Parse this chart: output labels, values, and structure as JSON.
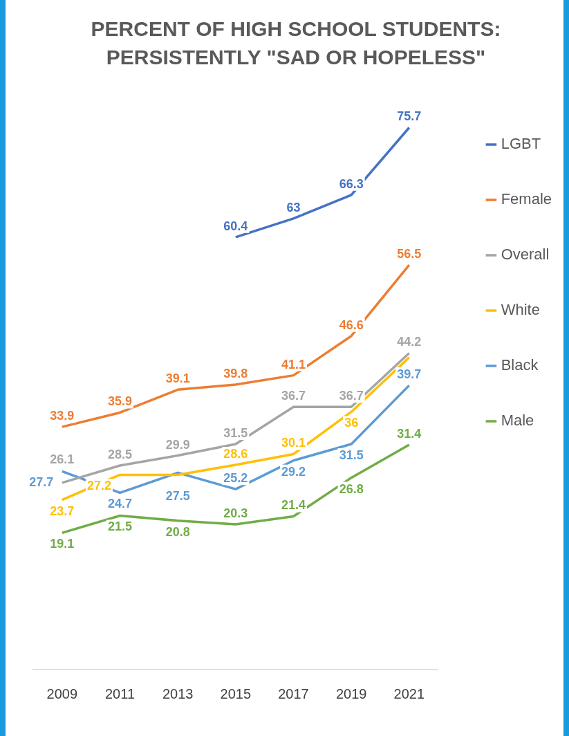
{
  "chart_data": {
    "type": "line",
    "title": "PERCENT OF HIGH SCHOOL STUDENTS: PERSISTENTLY \"SAD OR HOPELESS\"",
    "categories": [
      "2009",
      "2011",
      "2013",
      "2015",
      "2017",
      "2019",
      "2021"
    ],
    "series": [
      {
        "name": "LGBT",
        "color": "#4472c4",
        "values": [
          null,
          null,
          null,
          60.4,
          63,
          66.3,
          75.7
        ],
        "value_labels": [
          null,
          null,
          null,
          "60.4",
          "63",
          "66.3",
          "75.7"
        ]
      },
      {
        "name": "Female",
        "color": "#ed7d31",
        "values": [
          33.9,
          35.9,
          39.1,
          39.8,
          41.1,
          46.6,
          56.5
        ],
        "value_labels": [
          "33.9",
          "35.9",
          "39.1",
          "39.8",
          "41.1",
          "46.6",
          "56.5"
        ]
      },
      {
        "name": "Overall",
        "color": "#a5a5a5",
        "values": [
          26.1,
          28.5,
          29.9,
          31.5,
          36.7,
          36.7,
          44.2
        ],
        "value_labels": [
          "26.1",
          "28.5",
          "29.9",
          "31.5",
          "36.7",
          "36.7",
          "44.2"
        ]
      },
      {
        "name": "White",
        "color": "#ffc000",
        "values": [
          23.7,
          27.2,
          27.2,
          28.6,
          30.1,
          36,
          43.6
        ],
        "value_labels": [
          "23.7",
          "27.2",
          null,
          "28.6",
          "30.1",
          "36",
          null
        ]
      },
      {
        "name": "Black",
        "color": "#5b9bd5",
        "values": [
          27.7,
          24.7,
          27.5,
          25.2,
          29.2,
          31.5,
          39.7
        ],
        "value_labels": [
          "27.7",
          "24.7",
          "27.5",
          "25.2",
          "29.2",
          "31.5",
          "39.7"
        ]
      },
      {
        "name": "Male",
        "color": "#70ad47",
        "values": [
          19.1,
          21.5,
          20.8,
          20.3,
          21.4,
          26.8,
          31.4
        ],
        "value_labels": [
          "19.1",
          "21.5",
          "20.8",
          "20.3",
          "21.4",
          "26.8",
          "31.4"
        ]
      }
    ],
    "legend": "right",
    "grid": false,
    "marker": "none",
    "line_style": "solid",
    "tick_labels": "x"
  }
}
